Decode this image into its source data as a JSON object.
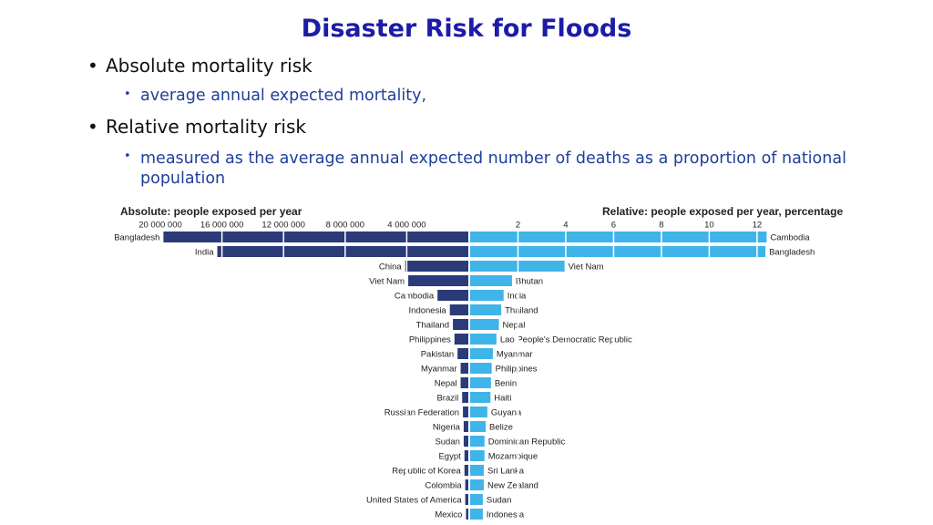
{
  "slide": {
    "title": "Disaster Risk for Floods",
    "bullets": [
      {
        "text": "Absolute mortality risk",
        "sub": "average annual expected mortality,"
      },
      {
        "text": "Relative mortality risk",
        "sub": "measured as the average annual expected number of deaths as a proportion of national population"
      }
    ]
  },
  "chart_data": [
    {
      "type": "bar",
      "orientation": "horizontal",
      "x_reversed": true,
      "title": "Absolute: people exposed per year",
      "color": "#2b3a78",
      "grid": true,
      "categories": [
        "Bangladesh",
        "India",
        "China",
        "Viet Nam",
        "Cambodia",
        "Indonesia",
        "Thailand",
        "Philippines",
        "Pakistan",
        "Myanmar",
        "Nepal",
        "Brazil",
        "Russian Federation",
        "Nigeria",
        "Sudan",
        "Egypt",
        "Republic of Korea",
        "Colombia",
        "United States of America",
        "Mexico"
      ],
      "values": [
        19800000,
        16300000,
        4100000,
        3900000,
        2000000,
        1200000,
        1000000,
        900000,
        700000,
        500000,
        500000,
        400000,
        350000,
        300000,
        300000,
        250000,
        250000,
        200000,
        200000,
        150000
      ],
      "xlim": [
        0,
        20000000
      ],
      "xticks": [
        {
          "value": 20000000,
          "label": "20 000 000"
        },
        {
          "value": 16000000,
          "label": "16 000 000"
        },
        {
          "value": 12000000,
          "label": "12 000 000"
        },
        {
          "value": 8000000,
          "label": "8 000 000"
        },
        {
          "value": 4000000,
          "label": "4 000 000"
        }
      ]
    },
    {
      "type": "bar",
      "orientation": "horizontal",
      "x_reversed": false,
      "title": "Relative: people exposed per year, percentage",
      "color": "#3fb4e8",
      "grid": true,
      "categories": [
        "Cambodia",
        "Bangladesh",
        "Viet Nam",
        "Bhutan",
        "India",
        "Thailand",
        "Nepal",
        "Lao People's Democratic Republic",
        "Myanmar",
        "Philippines",
        "Benin",
        "Haiti",
        "Guyana",
        "Belize",
        "Dominican Republic",
        "Mozambique",
        "Sri Lanka",
        "New Zealand",
        "Sudan",
        "Indonesia"
      ],
      "values": [
        12.4,
        12.35,
        3.95,
        1.75,
        1.4,
        1.3,
        1.2,
        1.1,
        0.95,
        0.9,
        0.87,
        0.85,
        0.72,
        0.65,
        0.6,
        0.6,
        0.57,
        0.57,
        0.53,
        0.53
      ],
      "xlim": [
        0,
        12.5
      ],
      "xticks": [
        2,
        4,
        6,
        8,
        10,
        12
      ]
    }
  ]
}
